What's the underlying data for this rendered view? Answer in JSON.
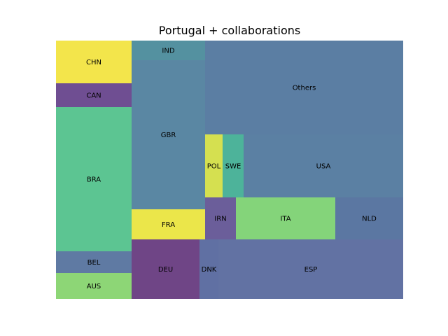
{
  "chart_data": {
    "type": "treemap",
    "title": "Portugal + collaborations",
    "tiles": [
      {
        "label": "CHN",
        "color": "#f3e54b"
      },
      {
        "label": "CAN",
        "color": "#6f4e92"
      },
      {
        "label": "BRA",
        "color": "#5cc592"
      },
      {
        "label": "BEL",
        "color": "#5f7aa3"
      },
      {
        "label": "AUS",
        "color": "#8dd676"
      },
      {
        "label": "IND",
        "color": "#5491a0"
      },
      {
        "label": "GBR",
        "color": "#5a87a3"
      },
      {
        "label": "FRA",
        "color": "#ebe64a"
      },
      {
        "label": "DEU",
        "color": "#6f4586"
      },
      {
        "label": "DNK",
        "color": "#6070a3"
      },
      {
        "label": "Others",
        "color": "#5b7ea3"
      },
      {
        "label": "POL",
        "color": "#d5e050"
      },
      {
        "label": "SWE",
        "color": "#4db39a"
      },
      {
        "label": "USA",
        "color": "#5b80a3"
      },
      {
        "label": "IRN",
        "color": "#6b5e9a"
      },
      {
        "label": "ITA",
        "color": "#84d47a"
      },
      {
        "label": "NLD",
        "color": "#5b77a2"
      },
      {
        "label": "ESP",
        "color": "#6272a3"
      }
    ]
  }
}
